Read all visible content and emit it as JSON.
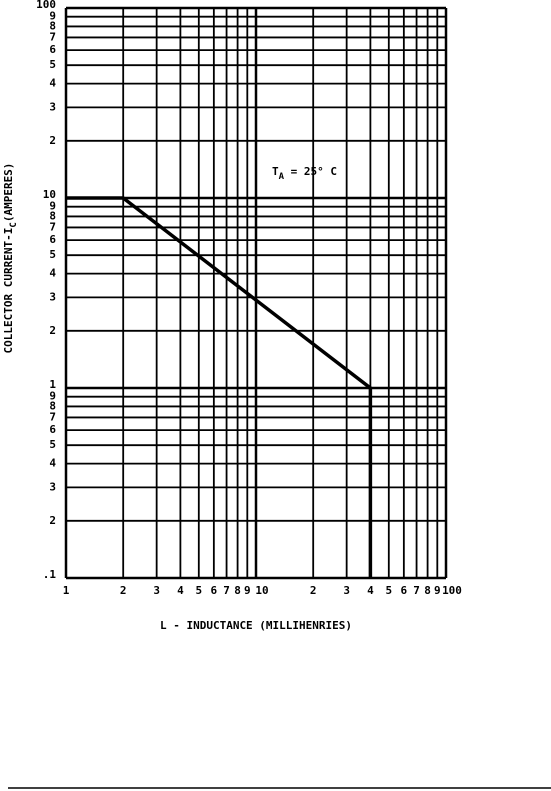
{
  "chart_data": {
    "type": "line",
    "ylabel": [
      "COLLECTOR CURRENT-I",
      "C",
      "(AMPERES)"
    ],
    "xlabel": "L - INDUCTANCE (MILLIHENRIES)",
    "annotation": [
      "T",
      "A",
      " = 25° C"
    ],
    "x": [
      1,
      2,
      40,
      40
    ],
    "values": [
      10,
      10,
      1,
      0.1
    ],
    "color": "#000000",
    "xlog": true,
    "ylog": true,
    "grid": true,
    "xlim": [
      1,
      100
    ],
    "ylim": [
      0.1,
      100
    ],
    "xticks": [
      1,
      2,
      3,
      4,
      5,
      6,
      7,
      8,
      9,
      10,
      {
        "value": 20,
        "label": "2"
      },
      {
        "value": 30,
        "label": "3"
      },
      {
        "value": 40,
        "label": "4"
      },
      {
        "value": 50,
        "label": "5"
      },
      {
        "value": 60,
        "label": "6"
      },
      {
        "value": 70,
        "label": "7"
      },
      {
        "value": 80,
        "label": "8"
      },
      {
        "value": 90,
        "label": "9"
      },
      100
    ],
    "yticks": [
      {
        "value": 0.1,
        "label": ".1"
      },
      {
        "value": 0.2,
        "label": "2"
      },
      {
        "value": 0.3,
        "label": "3"
      },
      {
        "value": 0.4,
        "label": "4"
      },
      {
        "value": 0.5,
        "label": "5"
      },
      {
        "value": 0.6,
        "label": "6"
      },
      {
        "value": 0.7,
        "label": "7"
      },
      {
        "value": 0.8,
        "label": "8"
      },
      {
        "value": 0.9,
        "label": "9"
      },
      1,
      2,
      3,
      4,
      5,
      6,
      7,
      8,
      9,
      10,
      {
        "value": 20,
        "label": "2"
      },
      {
        "value": 30,
        "label": "3"
      },
      {
        "value": 40,
        "label": "4"
      },
      {
        "value": 50,
        "label": "5"
      },
      {
        "value": 60,
        "label": "6"
      },
      {
        "value": 70,
        "label": "7"
      },
      {
        "value": 80,
        "label": "8"
      },
      {
        "value": 90,
        "label": "9"
      },
      100
    ]
  }
}
